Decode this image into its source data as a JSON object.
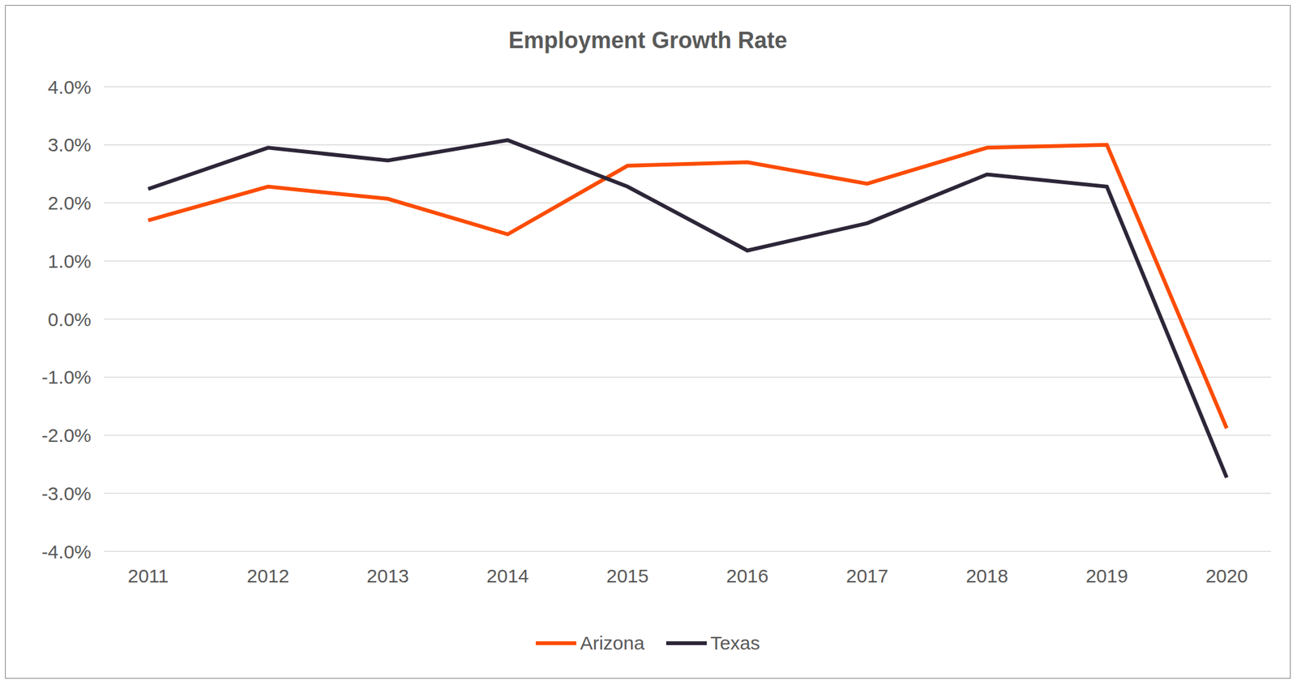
{
  "chart_data": {
    "type": "line",
    "title": "Employment Growth Rate",
    "categories": [
      "2011",
      "2012",
      "2013",
      "2014",
      "2015",
      "2016",
      "2017",
      "2018",
      "2019",
      "2020"
    ],
    "series": [
      {
        "name": "Arizona",
        "color": "#fc4c02",
        "values": [
          1.7,
          2.28,
          2.07,
          1.46,
          2.64,
          2.7,
          2.33,
          2.95,
          3.0,
          -1.88
        ]
      },
      {
        "name": "Texas",
        "color": "#2d2638",
        "values": [
          2.24,
          2.95,
          2.73,
          3.08,
          2.28,
          1.18,
          1.65,
          2.49,
          2.28,
          -2.73
        ]
      }
    ],
    "ylim": [
      -4,
      4
    ],
    "yticks": [
      {
        "value": -4,
        "label": "-4.0%"
      },
      {
        "value": -3,
        "label": "-3.0%"
      },
      {
        "value": -2,
        "label": "-2.0%"
      },
      {
        "value": -1,
        "label": "-1.0%"
      },
      {
        "value": 0,
        "label": "0.0%"
      },
      {
        "value": 1,
        "label": "1.0%"
      },
      {
        "value": 2,
        "label": "2.0%"
      },
      {
        "value": 3,
        "label": "3.0%"
      },
      {
        "value": 4,
        "label": "4.0%"
      }
    ],
    "grid": true,
    "legend": "bottom"
  }
}
